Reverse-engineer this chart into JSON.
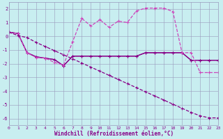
{
  "xlabel": "Windchill (Refroidissement éolien,°C)",
  "xlim": [
    0,
    23
  ],
  "ylim": [
    -6.5,
    2.5
  ],
  "yticks": [
    2,
    1,
    0,
    -1,
    -2,
    -3,
    -4,
    -5,
    -6
  ],
  "xticks": [
    0,
    1,
    2,
    3,
    4,
    5,
    6,
    7,
    8,
    9,
    10,
    11,
    12,
    13,
    14,
    15,
    16,
    17,
    18,
    19,
    20,
    21,
    22,
    23
  ],
  "background_color": "#c8eef0",
  "grid_color": "#9999bb",
  "series": [
    {
      "y": [
        0.3,
        0.2,
        -1.2,
        -1.5,
        -1.6,
        -1.7,
        -2.15,
        -1.45,
        -1.45,
        -1.45,
        -1.45,
        -1.45,
        -1.45,
        -1.45,
        -1.45,
        -1.2,
        -1.2,
        -1.2,
        -1.2,
        -1.2,
        -1.75,
        -1.75,
        -1.75,
        -1.75
      ],
      "color": "#880088",
      "lw": 0.9,
      "ls": "-",
      "marker": "+"
    },
    {
      "y": [
        0.3,
        0.2,
        -1.2,
        -1.5,
        -1.6,
        -1.7,
        -2.15,
        -1.45,
        -1.45,
        -1.45,
        -1.45,
        -1.45,
        -1.45,
        -1.45,
        -1.45,
        -1.2,
        -1.2,
        -1.2,
        -1.2,
        -1.2,
        -1.75,
        -1.75,
        -1.75,
        -1.75
      ],
      "color": "#880088",
      "lw": 0.9,
      "ls": "-",
      "marker": "+"
    },
    {
      "y": [
        0.3,
        0.2,
        -1.2,
        -1.55,
        -1.6,
        -1.9,
        -2.1,
        -0.4,
        1.3,
        0.75,
        1.2,
        0.65,
        1.1,
        1.0,
        1.85,
        2.05,
        2.05,
        2.05,
        1.8,
        -1.2,
        -1.2,
        -2.65,
        -2.65,
        -2.65
      ],
      "color": "#cc44bb",
      "lw": 0.9,
      "ls": "--",
      "marker": "+"
    },
    {
      "y": [
        0.3,
        0.05,
        -0.1,
        -0.45,
        -0.75,
        -1.05,
        -1.35,
        -1.65,
        -1.95,
        -2.25,
        -2.55,
        -2.85,
        -3.15,
        -3.45,
        -3.75,
        -4.05,
        -4.35,
        -4.65,
        -4.95,
        -5.25,
        -5.55,
        -5.8,
        -5.95,
        -5.95
      ],
      "color": "#880088",
      "lw": 0.9,
      "ls": "--",
      "marker": "+"
    }
  ]
}
